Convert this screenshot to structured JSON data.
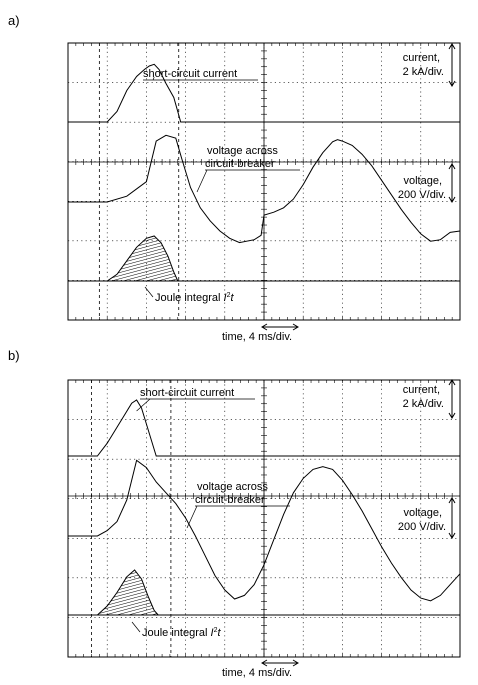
{
  "chart_data": [
    {
      "type": "line",
      "panel": "a)",
      "annotations": {
        "short_circuit_current": "short-circuit current",
        "voltage_line1": "voltage across",
        "voltage_line2": "circuit-breaker",
        "joule_prefix": "Joule integral ",
        "joule_symbol_i": "I",
        "joule_sup": "2",
        "joule_t": "t",
        "current_scale_1": "current,",
        "current_scale_2": "2 kA/div.",
        "voltage_scale_1": "voltage,",
        "voltage_scale_2": "200 V/div.",
        "time_axis": "time, 4 ms/div."
      },
      "x_unit": "ms",
      "x_range": [
        0,
        40
      ],
      "grid": true,
      "series": [
        {
          "key": "current",
          "unit": "kA",
          "points": [
            [
              0,
              0
            ],
            [
              4,
              0
            ],
            [
              5,
              0.6
            ],
            [
              6,
              1.8
            ],
            [
              7,
              2.6
            ],
            [
              7.8,
              3.0
            ],
            [
              8.3,
              3.2
            ],
            [
              8.8,
              3.3
            ],
            [
              9.3,
              3.0
            ],
            [
              10,
              2.2
            ],
            [
              10.8,
              1.4
            ],
            [
              11.5,
              0
            ],
            [
              40,
              0
            ]
          ]
        },
        {
          "key": "voltage",
          "unit": "V",
          "points": [
            [
              0,
              0
            ],
            [
              4,
              0
            ],
            [
              6,
              40
            ],
            [
              8,
              140
            ],
            [
              9,
              420
            ],
            [
              10,
              460
            ],
            [
              11,
              440
            ],
            [
              11.6,
              300
            ],
            [
              12.5,
              100
            ],
            [
              13.5,
              -40
            ],
            [
              14.5,
              -130
            ],
            [
              15.5,
              -200
            ],
            [
              16.5,
              -250
            ],
            [
              17.5,
              -280
            ],
            [
              19,
              -260
            ],
            [
              19.7,
              -230
            ],
            [
              20,
              -90
            ],
            [
              21,
              -70
            ],
            [
              22,
              -40
            ],
            [
              23,
              20
            ],
            [
              24,
              120
            ],
            [
              25,
              240
            ],
            [
              26,
              340
            ],
            [
              27,
              415
            ],
            [
              27.5,
              430
            ],
            [
              28,
              420
            ],
            [
              29,
              390
            ],
            [
              30,
              330
            ],
            [
              31,
              250
            ],
            [
              32,
              150
            ],
            [
              33,
              50
            ],
            [
              34,
              -50
            ],
            [
              35,
              -140
            ],
            [
              36,
              -220
            ],
            [
              37,
              -270
            ],
            [
              38,
              -260
            ],
            [
              39,
              -210
            ],
            [
              40,
              -200
            ]
          ]
        },
        {
          "key": "joule",
          "unit": "A²s",
          "points": [
            [
              0,
              0
            ],
            [
              4,
              0
            ],
            [
              5,
              0.15
            ],
            [
              6,
              0.45
            ],
            [
              7,
              0.75
            ],
            [
              8,
              0.95
            ],
            [
              8.8,
              1.0
            ],
            [
              9.5,
              0.85
            ],
            [
              10.2,
              0.55
            ],
            [
              10.8,
              0.2
            ],
            [
              11.2,
              0
            ],
            [
              40,
              0
            ]
          ]
        }
      ]
    },
    {
      "type": "line",
      "panel": "b)",
      "annotations": {
        "short_circuit_current": "short-circuit current",
        "voltage_line1": "voltage across",
        "voltage_line2": "circuit-breaker",
        "joule_prefix": "Joule integral ",
        "joule_symbol_i": "I",
        "joule_sup": "2",
        "joule_t": "t",
        "current_scale_1": "current,",
        "current_scale_2": "2 kA/div.",
        "voltage_scale_1": "voltage,",
        "voltage_scale_2": "200 V/div.",
        "time_axis": "time, 4 ms/div."
      },
      "x_unit": "ms",
      "x_range": [
        0,
        40
      ],
      "grid": true,
      "series": [
        {
          "key": "current",
          "unit": "kA",
          "points": [
            [
              0,
              0
            ],
            [
              3,
              0
            ],
            [
              4,
              0.8
            ],
            [
              5,
              1.8
            ],
            [
              6,
              2.8
            ],
            [
              6.5,
              3.3
            ],
            [
              7,
              3.5
            ],
            [
              7.5,
              3.0
            ],
            [
              8,
              2.0
            ],
            [
              8.5,
              1.0
            ],
            [
              9,
              0
            ],
            [
              40,
              0
            ]
          ]
        },
        {
          "key": "voltage",
          "unit": "V",
          "points": [
            [
              0,
              0
            ],
            [
              3,
              0
            ],
            [
              4,
              30
            ],
            [
              5,
              80
            ],
            [
              6,
              200
            ],
            [
              7,
              420
            ],
            [
              8,
              380
            ],
            [
              9,
              300
            ],
            [
              10,
              240
            ],
            [
              11,
              180
            ],
            [
              12,
              100
            ],
            [
              13,
              0
            ],
            [
              14,
              -110
            ],
            [
              15,
              -220
            ],
            [
              16,
              -300
            ],
            [
              17,
              -350
            ],
            [
              18,
              -330
            ],
            [
              19,
              -270
            ],
            [
              20,
              -160
            ],
            [
              21,
              -20
            ],
            [
              22,
              120
            ],
            [
              23,
              240
            ],
            [
              24,
              320
            ],
            [
              25,
              370
            ],
            [
              26,
              385
            ],
            [
              27,
              370
            ],
            [
              28,
              310
            ],
            [
              29,
              230
            ],
            [
              30,
              140
            ],
            [
              31,
              40
            ],
            [
              32,
              -60
            ],
            [
              33,
              -150
            ],
            [
              34,
              -230
            ],
            [
              35,
              -300
            ],
            [
              36,
              -345
            ],
            [
              37,
              -360
            ],
            [
              38,
              -330
            ],
            [
              39,
              -270
            ],
            [
              40,
              -210
            ]
          ]
        },
        {
          "key": "joule",
          "unit": "A²s",
          "points": [
            [
              0,
              0
            ],
            [
              3,
              0
            ],
            [
              4,
              0.2
            ],
            [
              5,
              0.5
            ],
            [
              6,
              0.85
            ],
            [
              6.8,
              1.0
            ],
            [
              7.5,
              0.8
            ],
            [
              8.2,
              0.4
            ],
            [
              8.8,
              0.1
            ],
            [
              9.2,
              0
            ],
            [
              40,
              0
            ]
          ]
        }
      ]
    }
  ]
}
